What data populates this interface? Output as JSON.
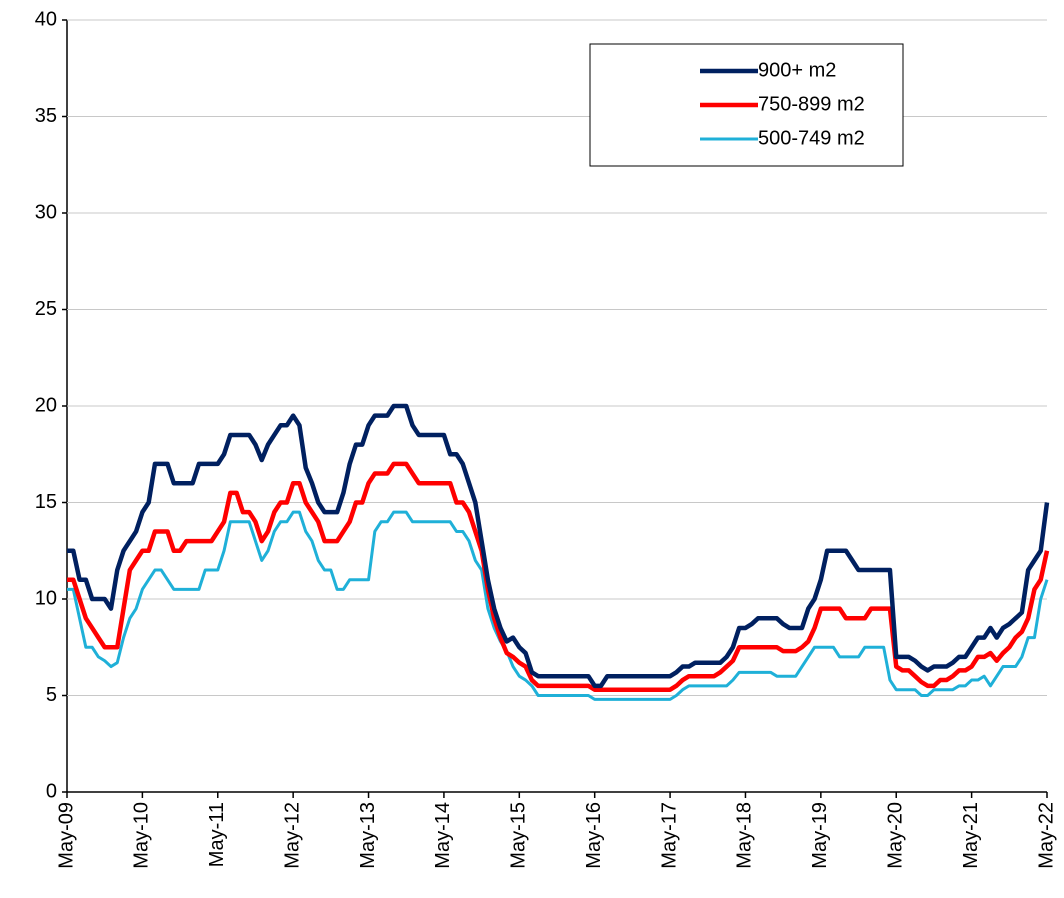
{
  "chart_data": {
    "type": "line",
    "categories": [
      "May-09",
      null,
      null,
      null,
      null,
      null,
      null,
      null,
      null,
      null,
      null,
      null,
      "May-10",
      null,
      null,
      null,
      null,
      null,
      null,
      null,
      null,
      null,
      null,
      null,
      "May-11",
      null,
      null,
      null,
      null,
      null,
      null,
      null,
      null,
      null,
      null,
      null,
      "May-12",
      null,
      null,
      null,
      null,
      null,
      null,
      null,
      null,
      null,
      null,
      null,
      "May-13",
      null,
      null,
      null,
      null,
      null,
      null,
      null,
      null,
      null,
      null,
      null,
      "May-14",
      null,
      null,
      null,
      null,
      null,
      null,
      null,
      null,
      null,
      null,
      null,
      "May-15",
      null,
      null,
      null,
      null,
      null,
      null,
      null,
      null,
      null,
      null,
      null,
      "May-16",
      null,
      null,
      null,
      null,
      null,
      null,
      null,
      null,
      null,
      null,
      null,
      "May-17",
      null,
      null,
      null,
      null,
      null,
      null,
      null,
      null,
      null,
      null,
      null,
      "May-18",
      null,
      null,
      null,
      null,
      null,
      null,
      null,
      null,
      null,
      null,
      null,
      "May-19",
      null,
      null,
      null,
      null,
      null,
      null,
      null,
      null,
      null,
      null,
      null,
      "May-20",
      null,
      null,
      null,
      null,
      null,
      null,
      null,
      null,
      null,
      null,
      null,
      "May-21",
      null,
      null,
      null,
      null,
      null,
      null,
      null,
      null,
      null,
      null,
      null,
      "May-22"
    ],
    "series": [
      {
        "name": "900+ m2",
        "color": "#002060",
        "width": 4.5,
        "values": [
          12.5,
          12.5,
          11,
          11,
          10,
          10,
          10,
          9.5,
          11.5,
          12.5,
          13,
          13.5,
          14.5,
          15,
          17,
          17,
          17,
          16,
          16,
          16,
          16,
          17,
          17,
          17,
          17,
          17.5,
          18.5,
          18.5,
          18.5,
          18.5,
          18,
          17.2,
          18,
          18.5,
          19,
          19,
          19.5,
          19,
          16.8,
          16,
          15,
          14.5,
          14.5,
          14.5,
          15.5,
          17,
          18,
          18,
          19,
          19.5,
          19.5,
          19.5,
          20,
          20,
          20,
          19,
          18.5,
          18.5,
          18.5,
          18.5,
          18.5,
          17.5,
          17.5,
          17,
          16,
          15,
          13,
          11,
          9.5,
          8.5,
          7.8,
          8,
          7.5,
          7.2,
          6.2,
          6,
          6,
          6,
          6,
          6,
          6,
          6,
          6,
          6,
          5.5,
          5.5,
          6,
          6,
          6,
          6,
          6,
          6,
          6,
          6,
          6,
          6,
          6,
          6.2,
          6.5,
          6.5,
          6.7,
          6.7,
          6.7,
          6.7,
          6.7,
          7,
          7.5,
          8.5,
          8.5,
          8.7,
          9,
          9,
          9,
          9,
          8.7,
          8.5,
          8.5,
          8.5,
          9.5,
          10,
          11,
          12.5,
          12.5,
          12.5,
          12.5,
          12,
          11.5,
          11.5,
          11.5,
          11.5,
          11.5,
          11.5,
          7,
          7,
          7,
          6.8,
          6.5,
          6.3,
          6.5,
          6.5,
          6.5,
          6.7,
          7,
          7,
          7.5,
          8,
          8,
          8.5,
          8,
          8.5,
          8.7,
          9,
          9.3,
          11.5,
          12,
          12.5,
          15
        ]
      },
      {
        "name": "750-899 m2",
        "color": "#ff0000",
        "width": 4.5,
        "values": [
          11,
          11,
          10,
          9,
          8.5,
          8,
          7.5,
          7.5,
          7.5,
          9.5,
          11.5,
          12,
          12.5,
          12.5,
          13.5,
          13.5,
          13.5,
          12.5,
          12.5,
          13,
          13,
          13,
          13,
          13,
          13.5,
          14,
          15.5,
          15.5,
          14.5,
          14.5,
          14,
          13,
          13.5,
          14.5,
          15,
          15,
          16,
          16,
          15,
          14.5,
          14,
          13,
          13,
          13,
          13.5,
          14,
          15,
          15,
          16,
          16.5,
          16.5,
          16.5,
          17,
          17,
          17,
          16.5,
          16,
          16,
          16,
          16,
          16,
          16,
          15,
          15,
          14.5,
          13.5,
          12.5,
          10.5,
          9,
          8,
          7.2,
          7,
          6.7,
          6.5,
          5.8,
          5.5,
          5.5,
          5.5,
          5.5,
          5.5,
          5.5,
          5.5,
          5.5,
          5.5,
          5.3,
          5.3,
          5.3,
          5.3,
          5.3,
          5.3,
          5.3,
          5.3,
          5.3,
          5.3,
          5.3,
          5.3,
          5.3,
          5.5,
          5.8,
          6,
          6,
          6,
          6,
          6,
          6.2,
          6.5,
          6.8,
          7.5,
          7.5,
          7.5,
          7.5,
          7.5,
          7.5,
          7.5,
          7.3,
          7.3,
          7.3,
          7.5,
          7.8,
          8.5,
          9.5,
          9.5,
          9.5,
          9.5,
          9,
          9,
          9,
          9,
          9.5,
          9.5,
          9.5,
          9.5,
          6.5,
          6.3,
          6.3,
          6,
          5.7,
          5.5,
          5.5,
          5.8,
          5.8,
          6,
          6.3,
          6.3,
          6.5,
          7,
          7,
          7.2,
          6.8,
          7.2,
          7.5,
          8,
          8.3,
          9,
          10.5,
          11,
          12.5
        ]
      },
      {
        "name": "500-749 m2",
        "color": "#1fb0d8",
        "width": 3,
        "values": [
          10.5,
          10.5,
          9,
          7.5,
          7.5,
          7,
          6.8,
          6.5,
          6.7,
          8,
          9,
          9.5,
          10.5,
          11,
          11.5,
          11.5,
          11,
          10.5,
          10.5,
          10.5,
          10.5,
          10.5,
          11.5,
          11.5,
          11.5,
          12.5,
          14,
          14,
          14,
          14,
          13,
          12,
          12.5,
          13.5,
          14,
          14,
          14.5,
          14.5,
          13.5,
          13,
          12,
          11.5,
          11.5,
          10.5,
          10.5,
          11,
          11,
          11,
          11,
          13.5,
          14,
          14,
          14.5,
          14.5,
          14.5,
          14,
          14,
          14,
          14,
          14,
          14,
          14,
          13.5,
          13.5,
          13,
          12,
          11.5,
          9.5,
          8.5,
          7.8,
          7.3,
          6.5,
          6,
          5.8,
          5.5,
          5,
          5,
          5,
          5,
          5,
          5,
          5,
          5,
          5,
          4.8,
          4.8,
          4.8,
          4.8,
          4.8,
          4.8,
          4.8,
          4.8,
          4.8,
          4.8,
          4.8,
          4.8,
          4.8,
          5,
          5.3,
          5.5,
          5.5,
          5.5,
          5.5,
          5.5,
          5.5,
          5.5,
          5.8,
          6.2,
          6.2,
          6.2,
          6.2,
          6.2,
          6.2,
          6,
          6,
          6,
          6,
          6.5,
          7,
          7.5,
          7.5,
          7.5,
          7.5,
          7,
          7,
          7,
          7,
          7.5,
          7.5,
          7.5,
          7.5,
          5.8,
          5.3,
          5.3,
          5.3,
          5.3,
          5,
          5,
          5.3,
          5.3,
          5.3,
          5.3,
          5.5,
          5.5,
          5.8,
          5.8,
          6,
          5.5,
          6,
          6.5,
          6.5,
          6.5,
          7,
          8,
          8,
          10,
          11
        ]
      }
    ],
    "ylim": [
      0,
      40
    ],
    "yticks": [
      0,
      5,
      10,
      15,
      20,
      25,
      30,
      35,
      40
    ],
    "grid": true,
    "legend": "top-right"
  }
}
